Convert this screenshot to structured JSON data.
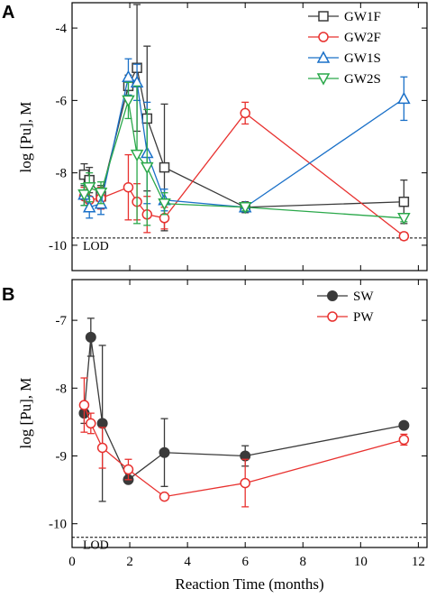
{
  "chart_data": [
    {
      "panel": "A",
      "type": "line",
      "xlabel": "",
      "ylabel": "log [Pu], M",
      "xlim": [
        0,
        12.3
      ],
      "ylim": [
        -10.7,
        -3.3
      ],
      "x_ticks": [
        0,
        2,
        4,
        6,
        8,
        10,
        12
      ],
      "y_ticks": [
        -10,
        -8,
        -6,
        -4
      ],
      "y_tick_labels": [
        "-10",
        "-8",
        "-6",
        "-4"
      ],
      "grid": false,
      "legend_position": "top-right",
      "lod": {
        "value": -9.8,
        "label": "LOD"
      },
      "series": [
        {
          "name": "GW1F",
          "color": "#3a3a3a",
          "marker": "square",
          "x": [
            0.42,
            0.6,
            1.0,
            1.95,
            2.25,
            2.6,
            3.2,
            6.0,
            11.5
          ],
          "y": [
            -8.05,
            -8.2,
            -8.65,
            -5.6,
            -5.1,
            -6.5,
            -7.85,
            -8.95,
            -8.8
          ],
          "err": [
            0.3,
            0.35,
            0.3,
            0.3,
            1.75,
            2.0,
            1.75,
            0.15,
            0.6
          ]
        },
        {
          "name": "GW2F",
          "color": "#e8312f",
          "marker": "circle",
          "x": [
            0.42,
            0.6,
            1.0,
            1.95,
            2.25,
            2.6,
            3.2,
            6.0,
            11.5
          ],
          "y": [
            -8.65,
            -8.75,
            -8.7,
            -8.4,
            -8.8,
            -9.15,
            -9.25,
            -6.35,
            -9.75
          ],
          "err": [
            0.25,
            0.3,
            0.3,
            0.9,
            0.5,
            0.5,
            0.3,
            0.3,
            0.1
          ]
        },
        {
          "name": "GW1S",
          "color": "#1a70c8",
          "marker": "triangle-up",
          "x": [
            0.42,
            0.6,
            1.0,
            1.95,
            2.25,
            2.6,
            3.2,
            6.0,
            11.5
          ],
          "y": [
            -8.6,
            -8.95,
            -8.85,
            -5.35,
            -5.5,
            -7.45,
            -8.75,
            -8.95,
            -5.95
          ],
          "err": [
            0.3,
            0.3,
            0.3,
            0.5,
            0.5,
            1.4,
            0.3,
            0.1,
            0.6
          ]
        },
        {
          "name": "GW2S",
          "color": "#2aa84a",
          "marker": "triangle-down",
          "x": [
            0.42,
            0.6,
            1.0,
            1.95,
            2.25,
            2.6,
            3.2,
            6.0,
            11.5
          ],
          "y": [
            -8.6,
            -8.4,
            -8.55,
            -6.0,
            -7.5,
            -7.85,
            -8.85,
            -8.95,
            -9.25
          ],
          "err": [
            0.3,
            0.4,
            0.3,
            0.5,
            1.9,
            1.6,
            0.3,
            0.1,
            0.1
          ]
        }
      ]
    },
    {
      "panel": "B",
      "type": "line",
      "xlabel": "Reaction Time (months)",
      "ylabel": "log [Pu], M",
      "xlim": [
        0,
        12.3
      ],
      "ylim": [
        -10.35,
        -6.4
      ],
      "x_ticks": [
        0,
        2,
        4,
        6,
        8,
        10,
        12
      ],
      "x_tick_labels": [
        "0",
        "2",
        "4",
        "6",
        "8",
        "10",
        "12"
      ],
      "y_ticks": [
        -10,
        -9,
        -8,
        -7
      ],
      "y_tick_labels": [
        "-10",
        "-9",
        "-8",
        "-7"
      ],
      "grid": false,
      "legend_position": "top-right",
      "lod": {
        "value": -10.2,
        "label": "LOD"
      },
      "series": [
        {
          "name": "SW",
          "color": "#3a3a3a",
          "marker": "filled-circle",
          "x": [
            0.42,
            0.65,
            1.05,
            1.95,
            3.2,
            6.0,
            11.5
          ],
          "y": [
            -8.37,
            -7.25,
            -8.52,
            -9.35,
            -8.95,
            -9.0,
            -8.55
          ],
          "err": [
            0.15,
            0.28,
            1.15,
            0.05,
            0.5,
            0.15,
            0.05
          ]
        },
        {
          "name": "PW",
          "color": "#e8312f",
          "marker": "circle",
          "x": [
            0.42,
            0.65,
            1.05,
            1.95,
            3.2,
            6.0,
            11.5
          ],
          "y": [
            -8.25,
            -8.52,
            -8.88,
            -9.2,
            -9.6,
            -9.4,
            -8.76
          ],
          "err": [
            0.4,
            0.15,
            0.3,
            0.15,
            0.0,
            0.35,
            0.08
          ]
        }
      ]
    }
  ]
}
